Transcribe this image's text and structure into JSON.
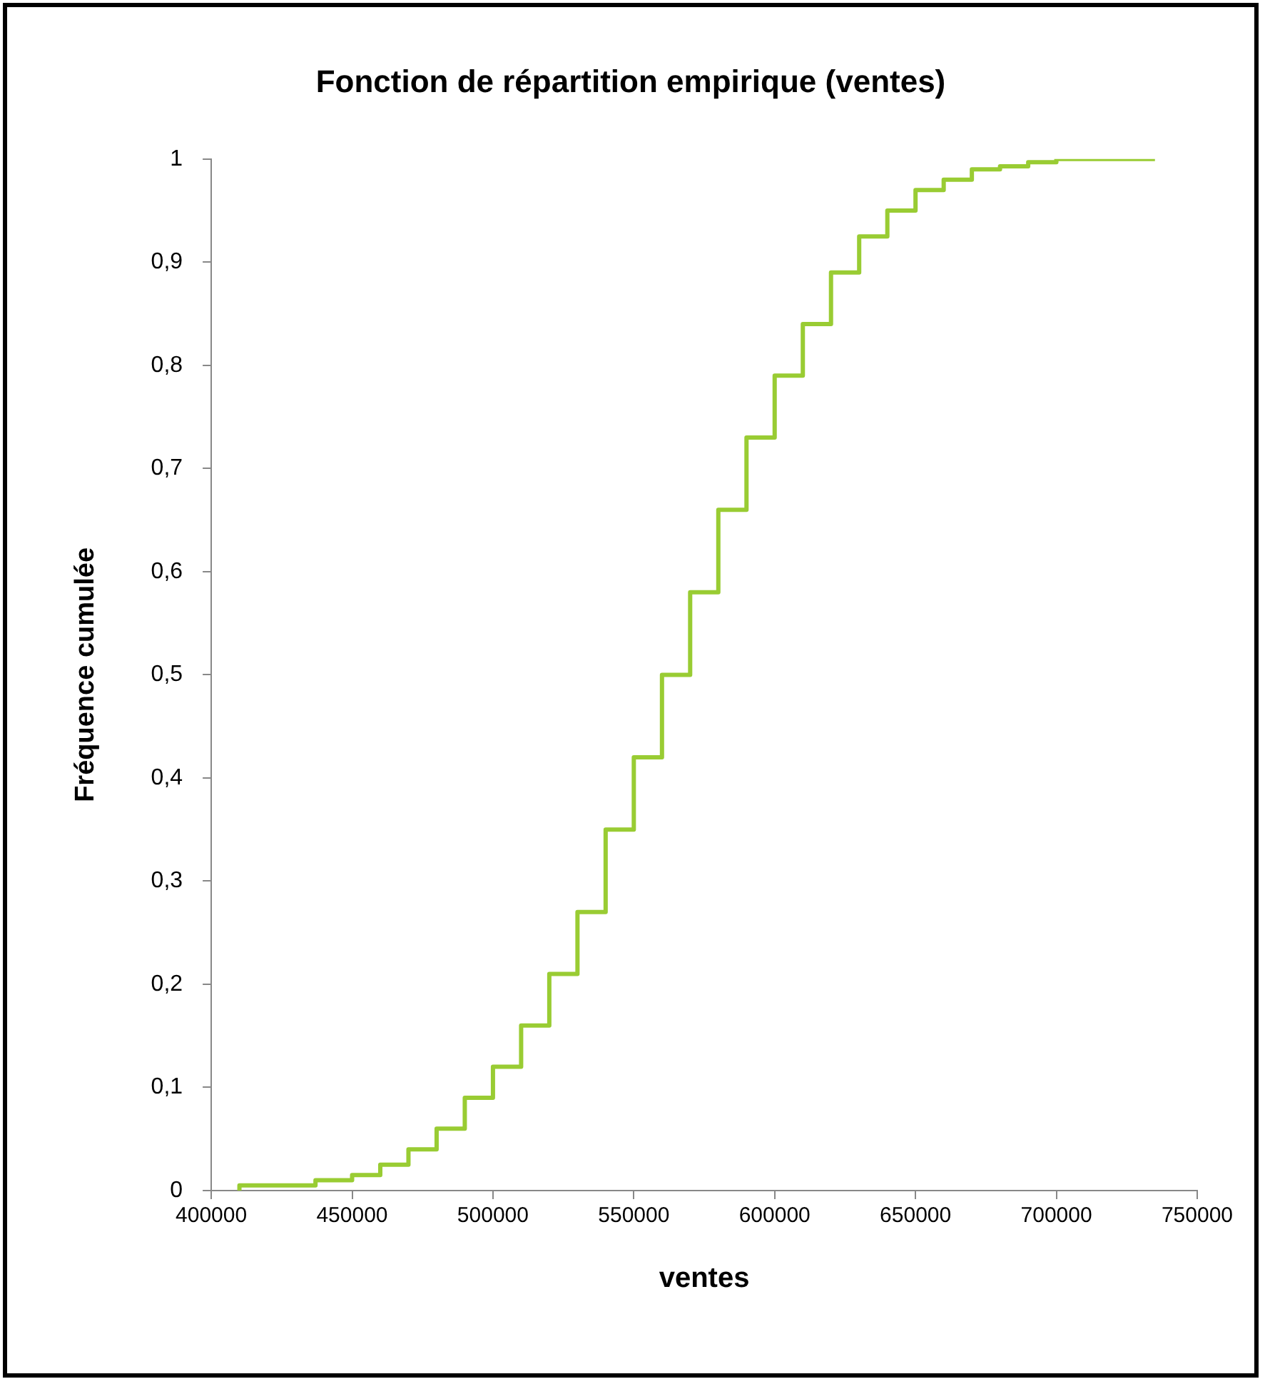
{
  "chart_data": {
    "type": "step",
    "title": "Fonction de répartition empirique (ventes)",
    "xlabel": "ventes",
    "ylabel": "Fréquence cumulée",
    "series": [
      {
        "color": "#99cc33",
        "x": [
          410000,
          437000,
          450000,
          460000,
          470000,
          480000,
          490000,
          500000,
          510000,
          520000,
          530000,
          540000,
          550000,
          560000,
          570000,
          580000,
          590000,
          600000,
          610000,
          620000,
          630000,
          640000,
          650000,
          660000,
          670000,
          680000,
          690000,
          700000,
          713000,
          735000
        ],
        "values": [
          0,
          0.005,
          0.01,
          0.015,
          0.025,
          0.04,
          0.06,
          0.09,
          0.12,
          0.16,
          0.21,
          0.27,
          0.35,
          0.42,
          0.5,
          0.58,
          0.66,
          0.73,
          0.79,
          0.84,
          0.89,
          0.925,
          0.95,
          0.97,
          0.98,
          0.99,
          0.993,
          0.997,
          1,
          1
        ]
      }
    ],
    "xlim": [
      400000,
      750000
    ],
    "xticks": [
      400000,
      450000,
      500000,
      550000,
      600000,
      650000,
      700000,
      750000
    ],
    "ylim": [
      0,
      1
    ],
    "yticks": [
      0,
      {
        "value": 0.1,
        "label": "0,1"
      },
      {
        "value": 0.2,
        "label": "0,2"
      },
      {
        "value": 0.3,
        "label": "0,3"
      },
      {
        "value": 0.4,
        "label": "0,4"
      },
      {
        "value": 0.5,
        "label": "0,5"
      },
      {
        "value": 0.6,
        "label": "0,6"
      },
      {
        "value": 0.7,
        "label": "0,7"
      },
      {
        "value": 0.8,
        "label": "0,8"
      },
      {
        "value": 0.9,
        "label": "0,9"
      },
      1
    ],
    "grid": false,
    "legend": false,
    "marker": "none",
    "line_style": "solid"
  }
}
